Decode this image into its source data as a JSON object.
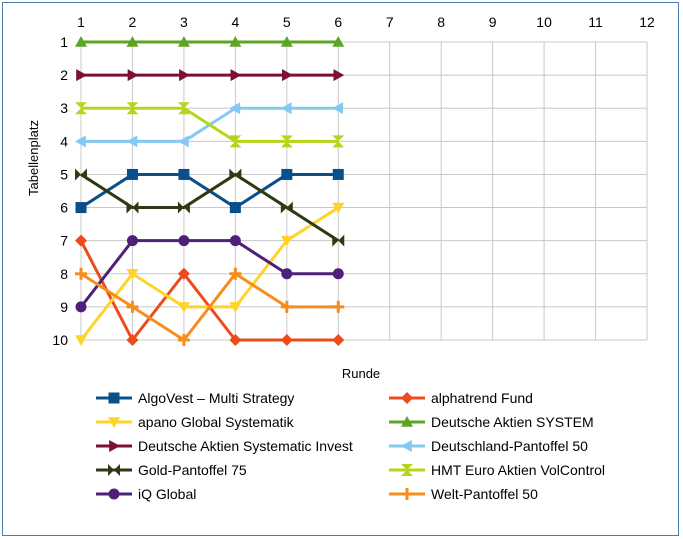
{
  "chart_data": {
    "type": "line",
    "xlabel": "Runde",
    "ylabel": "Tabellenplatz",
    "x_ticks": [
      1,
      2,
      3,
      4,
      5,
      6,
      7,
      8,
      9,
      10,
      11,
      12
    ],
    "y_ticks": [
      1,
      2,
      3,
      4,
      5,
      6,
      7,
      8,
      9,
      10
    ],
    "xlim": [
      1,
      12
    ],
    "ylim": [
      1,
      10
    ],
    "y_inverted": true,
    "grid": true,
    "legend_position": "bottom",
    "series": [
      {
        "name": "AlgoVest – Multi Strategy",
        "color": "#0b4f8a",
        "marker": "square",
        "values": [
          6,
          5,
          5,
          6,
          5,
          5
        ]
      },
      {
        "name": "alphatrend Fund",
        "color": "#ee4b1c",
        "marker": "diamond",
        "values": [
          7,
          10,
          8,
          10,
          10,
          10
        ]
      },
      {
        "name": "apano Global Systematik",
        "color": "#ffd42a",
        "marker": "triangle-down",
        "values": [
          10,
          8,
          9,
          9,
          7,
          6
        ]
      },
      {
        "name": "Deutsche Aktien SYSTEM",
        "color": "#5ea425",
        "marker": "triangle-up",
        "values": [
          1,
          1,
          1,
          1,
          1,
          1
        ]
      },
      {
        "name": "Deutsche Aktien Systematic Invest",
        "color": "#7d0f2f",
        "marker": "triangle-right",
        "values": [
          2,
          2,
          2,
          2,
          2,
          2
        ]
      },
      {
        "name": "Deutschland-Pantoffel 50",
        "color": "#83c9f2",
        "marker": "triangle-left",
        "values": [
          4,
          4,
          4,
          3,
          3,
          3
        ]
      },
      {
        "name": "Gold-Pantoffel 75",
        "color": "#2e3b12",
        "marker": "bowtie",
        "values": [
          5,
          6,
          6,
          5,
          6,
          7
        ]
      },
      {
        "name": "HMT Euro Aktien VolControl",
        "color": "#b5d51b",
        "marker": "hourglass",
        "values": [
          3,
          3,
          3,
          4,
          4,
          4
        ]
      },
      {
        "name": "iQ Global",
        "color": "#4e2079",
        "marker": "circle",
        "values": [
          9,
          7,
          7,
          7,
          8,
          8
        ]
      },
      {
        "name": "Welt-Pantoffel 50",
        "color": "#f78d1c",
        "marker": "plus",
        "values": [
          8,
          9,
          10,
          8,
          9,
          9
        ]
      }
    ]
  }
}
